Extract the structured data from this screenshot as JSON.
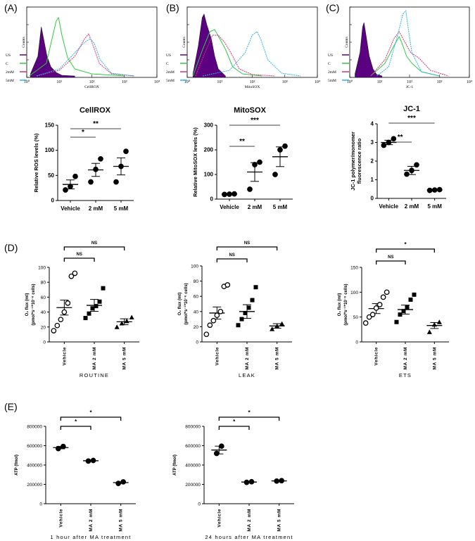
{
  "figure": {
    "panel_labels": [
      "(A)",
      "(B)",
      "(C)",
      "(D)",
      "(E)"
    ],
    "legend_labels": [
      "US",
      "C",
      "2mM",
      "5mM"
    ],
    "colors": {
      "US": "#5a0080",
      "C": "#2ecc40",
      "2mM": "#d6307a",
      "5mM": "#2ab3e6",
      "legend_text": "#996633"
    }
  },
  "chart_data": [
    {
      "id": "hist_A",
      "type": "area",
      "title": "",
      "xlabel": "CellROX",
      "ylabel": "Counts",
      "x_axis": "log",
      "xlim": [
        1,
        10000
      ],
      "x_ticks": [
        "10⁰",
        "10¹",
        "10²",
        "10³",
        "10⁴"
      ],
      "series": [
        {
          "name": "US",
          "style": "filled",
          "x": [
            1.3,
            2.2,
            2.8,
            3.3,
            4.2,
            5.5,
            8,
            12,
            30
          ],
          "y": [
            0.05,
            0.3,
            0.72,
            0.55,
            0.3,
            0.15,
            0.07,
            0.03,
            0.02
          ]
        },
        {
          "name": "C",
          "style": "line",
          "x": [
            1.2,
            4,
            6,
            8,
            9.5,
            12,
            18,
            30,
            100,
            1000
          ],
          "y": [
            0.02,
            0.2,
            0.55,
            0.8,
            0.85,
            0.6,
            0.28,
            0.12,
            0.05,
            0.02
          ]
        },
        {
          "name": "2mM",
          "style": "line",
          "x": [
            2,
            10,
            30,
            60,
            80,
            110,
            170,
            400,
            2000
          ],
          "y": [
            0.02,
            0.1,
            0.3,
            0.55,
            0.62,
            0.45,
            0.2,
            0.05,
            0.02
          ]
        },
        {
          "name": "5mM",
          "style": "line",
          "x": [
            2,
            10,
            30,
            60,
            90,
            120,
            180,
            400,
            2000
          ],
          "y": [
            0.02,
            0.12,
            0.35,
            0.5,
            0.55,
            0.48,
            0.25,
            0.06,
            0.02
          ]
        }
      ]
    },
    {
      "id": "hist_B",
      "type": "area",
      "title": "",
      "xlabel": "MitoSOX",
      "ylabel": "Counts",
      "x_axis": "log",
      "xlim": [
        1,
        10000
      ],
      "x_ticks": [
        "10⁰",
        "10¹",
        "10²",
        "10³",
        "10⁴"
      ],
      "series": [
        {
          "name": "US",
          "style": "filled",
          "x": [
            1.5,
            2.2,
            2.9,
            3.3,
            4,
            5.5,
            7,
            9,
            15
          ],
          "y": [
            0.05,
            0.45,
            0.85,
            0.9,
            0.75,
            0.55,
            0.3,
            0.12,
            0.02
          ]
        },
        {
          "name": "C",
          "style": "line",
          "x": [
            1.5,
            3,
            5,
            7,
            10,
            15,
            25,
            50,
            200
          ],
          "y": [
            0.02,
            0.4,
            0.65,
            0.68,
            0.55,
            0.4,
            0.15,
            0.05,
            0.02
          ]
        },
        {
          "name": "2mM",
          "style": "line",
          "x": [
            1.8,
            3.5,
            6,
            9,
            14,
            22,
            40,
            100,
            500
          ],
          "y": [
            0.02,
            0.35,
            0.6,
            0.6,
            0.5,
            0.35,
            0.12,
            0.04,
            0.02
          ]
        },
        {
          "name": "5mM",
          "style": "line",
          "x": [
            3,
            20,
            60,
            100,
            140,
            180,
            300,
            800,
            3000
          ],
          "y": [
            0.02,
            0.1,
            0.35,
            0.6,
            0.65,
            0.55,
            0.25,
            0.06,
            0.02
          ]
        }
      ]
    },
    {
      "id": "hist_C",
      "type": "area",
      "title": "",
      "xlabel": "JC-1",
      "ylabel": "Counts",
      "x_axis": "log",
      "xlim": [
        1,
        10000
      ],
      "x_ticks": [
        "10⁰",
        "10¹",
        "10²",
        "10³",
        "10⁴"
      ],
      "series": [
        {
          "name": "US",
          "style": "filled",
          "x": [
            1.5,
            2.2,
            2.7,
            3,
            3.5,
            4.5,
            6,
            8,
            12
          ],
          "y": [
            0.05,
            0.35,
            0.72,
            0.78,
            0.6,
            0.3,
            0.12,
            0.04,
            0.02
          ]
        },
        {
          "name": "C",
          "style": "line",
          "x": [
            5,
            15,
            30,
            45,
            60,
            80,
            120,
            250,
            1000
          ],
          "y": [
            0.02,
            0.2,
            0.45,
            0.58,
            0.45,
            0.3,
            0.2,
            0.08,
            0.02
          ]
        },
        {
          "name": "2mM",
          "style": "line",
          "x": [
            5,
            15,
            30,
            45,
            70,
            110,
            200,
            500,
            2000
          ],
          "y": [
            0.02,
            0.25,
            0.55,
            0.65,
            0.5,
            0.35,
            0.28,
            0.1,
            0.02
          ]
        },
        {
          "name": "5mM",
          "style": "line",
          "x": [
            8,
            20,
            40,
            60,
            75,
            90,
            120,
            250,
            1000
          ],
          "y": [
            0.02,
            0.15,
            0.6,
            0.9,
            0.95,
            0.7,
            0.35,
            0.08,
            0.02
          ]
        }
      ]
    },
    {
      "id": "cellrox",
      "type": "scatter",
      "title": "CellROX",
      "xlabel": "",
      "ylabel": "Relative ROS levels (%)",
      "categories": [
        "Vehicle",
        "2 mM",
        "5 mM"
      ],
      "ylim": [
        0,
        150
      ],
      "y_ticks": [
        0,
        50,
        100,
        150
      ],
      "x_ticks": [
        "Vehicle",
        "2 mM",
        "5 mM"
      ],
      "means": [
        32,
        61,
        68
      ],
      "sem": [
        9,
        13,
        17
      ],
      "points": [
        [
          21,
          28,
          48
        ],
        [
          37,
          62,
          83
        ],
        [
          37,
          68,
          98
        ]
      ],
      "significance": [
        {
          "from": 0,
          "to": 1,
          "label": "*"
        },
        {
          "from": 0,
          "to": 2,
          "label": "**"
        }
      ]
    },
    {
      "id": "mitosox",
      "type": "scatter",
      "title": "MitoSOX",
      "xlabel": "",
      "ylabel": "Relative MitoSOX levels (%)",
      "categories": [
        "Vehicle",
        "2 mM",
        "5 mM"
      ],
      "ylim": [
        0,
        300
      ],
      "y_ticks": [
        0,
        100,
        200,
        300
      ],
      "x_ticks": [
        "Vehicle",
        "2 mM",
        "5 mM"
      ],
      "means": [
        20,
        110,
        172
      ],
      "sem": [
        2,
        38,
        40
      ],
      "points": [
        [
          19,
          20,
          21
        ],
        [
          40,
          140,
          150
        ],
        [
          100,
          200,
          215
        ]
      ],
      "significance": [
        {
          "from": 0,
          "to": 1,
          "label": "**"
        },
        {
          "from": 0,
          "to": 2,
          "label": "***"
        }
      ]
    },
    {
      "id": "jc1",
      "type": "scatter",
      "title": "JC-1",
      "xlabel": "",
      "ylabel": "JC-1 polymer/monomer fluorescence ratio",
      "categories": [
        "Vehicle",
        "2 mM",
        "5 mM"
      ],
      "ylim": [
        0,
        4
      ],
      "y_ticks": [
        0,
        1,
        2,
        3,
        4
      ],
      "x_ticks": [
        "Vehicle",
        "2 mM",
        "5 mM"
      ],
      "means": [
        3.0,
        1.5,
        0.45
      ],
      "sem": [
        0.12,
        0.22,
        0.03
      ],
      "points": [
        [
          2.85,
          3.0,
          3.2
        ],
        [
          1.3,
          1.5,
          1.8
        ],
        [
          0.43,
          0.45,
          0.47
        ]
      ],
      "significance": [
        {
          "from": 0,
          "to": 1,
          "label": "**"
        },
        {
          "from": 0,
          "to": 2,
          "label": "***"
        }
      ]
    },
    {
      "id": "routine",
      "type": "scatter",
      "title": "",
      "xlabel": "ROUTINE",
      "ylabel": "O₂ flux (mt) (pmol*s⁻¹*10⁻⁶ cells)",
      "categories": [
        "Vehicle",
        "MA 2 mM",
        "MA 5 mM"
      ],
      "ylim": [
        0,
        100
      ],
      "y_ticks": [
        0,
        20,
        40,
        60,
        80,
        100
      ],
      "x_ticks": [
        "Vehicle",
        "MA 2 mM",
        "MA 5 mM"
      ],
      "means": [
        46,
        49,
        27
      ],
      "sem": [
        10,
        8,
        4
      ],
      "markers": [
        "circle",
        "square",
        "triangle"
      ],
      "points": [
        [
          15,
          22,
          30,
          40,
          52,
          88,
          92
        ],
        [
          32,
          38,
          45,
          48,
          54,
          72
        ],
        [
          20,
          25,
          28,
          33
        ]
      ],
      "significance": [
        {
          "from": 0,
          "to": 1,
          "label": "NS"
        },
        {
          "from": 0,
          "to": 2,
          "label": "NS"
        }
      ]
    },
    {
      "id": "leak",
      "type": "scatter",
      "title": "",
      "xlabel": "LEAK",
      "ylabel": "O₂ flux (mt) (pmol*s⁻¹*10⁻⁶ cells)",
      "categories": [
        "Vehicle",
        "MA 2 mM",
        "MA 5 mM"
      ],
      "ylim": [
        0,
        100
      ],
      "y_ticks": [
        0,
        20,
        40,
        60,
        80,
        100
      ],
      "x_ticks": [
        "Vehicle",
        "MA 2 mM",
        "MA 5 mM"
      ],
      "means": [
        38,
        40,
        21
      ],
      "sem": [
        8,
        9,
        3
      ],
      "markers": [
        "circle",
        "square",
        "triangle"
      ],
      "points": [
        [
          10,
          22,
          28,
          35,
          40,
          73,
          75
        ],
        [
          22,
          30,
          38,
          45,
          55,
          72
        ],
        [
          17,
          21,
          24
        ]
      ],
      "significance": [
        {
          "from": 0,
          "to": 1,
          "label": "NS"
        },
        {
          "from": 0,
          "to": 2,
          "label": "NS"
        }
      ]
    },
    {
      "id": "ets",
      "type": "scatter",
      "title": "",
      "xlabel": "ETS",
      "ylabel": "O₂ flux (mt) (pmol*s⁻¹*10⁻⁶ cells)",
      "categories": [
        "Vehicle",
        "MA 2 mM",
        "MA 5 mM"
      ],
      "ylim": [
        0,
        150
      ],
      "y_ticks": [
        0,
        50,
        100,
        150
      ],
      "x_ticks": [
        "Vehicle",
        "MA 2 mM",
        "MA 5 mM"
      ],
      "means": [
        67,
        65,
        33
      ],
      "sem": [
        10,
        9,
        6
      ],
      "markers": [
        "circle",
        "square",
        "triangle"
      ],
      "points": [
        [
          38,
          50,
          55,
          68,
          75,
          90,
          100
        ],
        [
          40,
          55,
          62,
          70,
          85,
          95
        ],
        [
          20,
          35,
          40
        ]
      ],
      "significance": [
        {
          "from": 0,
          "to": 1,
          "label": "NS"
        },
        {
          "from": 0,
          "to": 2,
          "label": "*"
        }
      ]
    },
    {
      "id": "atp_1h",
      "type": "scatter",
      "title": "",
      "xlabel": "1 hour after MA treatment",
      "ylabel": "ATP (fmol)",
      "categories": [
        "Vehicle",
        "MA 2 mM",
        "MA 5 mM"
      ],
      "ylim": [
        0,
        800000
      ],
      "y_ticks": [
        0,
        200000,
        400000,
        600000,
        800000
      ],
      "y_tick_labels": [
        "0",
        "200000",
        "400000",
        "600000",
        "800000"
      ],
      "x_ticks": [
        "Vehicle",
        "MA 2 mM",
        "MA 5 mM"
      ],
      "means": [
        580000,
        444000,
        218000
      ],
      "sem": [
        12000,
        3000,
        8000
      ],
      "markers": [
        "circle",
        "circle",
        "circle"
      ],
      "points": [
        [
          570000,
          592000
        ],
        [
          441000,
          447000
        ],
        [
          210000,
          226000
        ]
      ],
      "significance": [
        {
          "from": 0,
          "to": 1,
          "label": "*"
        },
        {
          "from": 0,
          "to": 2,
          "label": "*"
        }
      ]
    },
    {
      "id": "atp_24h",
      "type": "scatter",
      "title": "",
      "xlabel": "24 hours after MA treatment",
      "ylabel": "ATP (fmol)",
      "categories": [
        "Vehicle",
        "MA 2 mM",
        "MA 5 mM"
      ],
      "ylim": [
        0,
        800000
      ],
      "y_ticks": [
        0,
        200000,
        400000,
        600000,
        800000
      ],
      "y_tick_labels": [
        "0",
        "200000",
        "400000",
        "600000",
        "800000"
      ],
      "x_ticks": [
        "Vehicle",
        "MA 2 mM",
        "MA 5 mM"
      ],
      "means": [
        555000,
        224000,
        236000
      ],
      "sem": [
        40000,
        3000,
        2000
      ],
      "markers": [
        "circle",
        "circle",
        "circle"
      ],
      "points": [
        [
          520000,
          595000
        ],
        [
          221000,
          227000
        ],
        [
          234000,
          238000
        ]
      ],
      "significance": [
        {
          "from": 0,
          "to": 1,
          "label": "*"
        },
        {
          "from": 0,
          "to": 2,
          "label": "*"
        }
      ]
    }
  ]
}
